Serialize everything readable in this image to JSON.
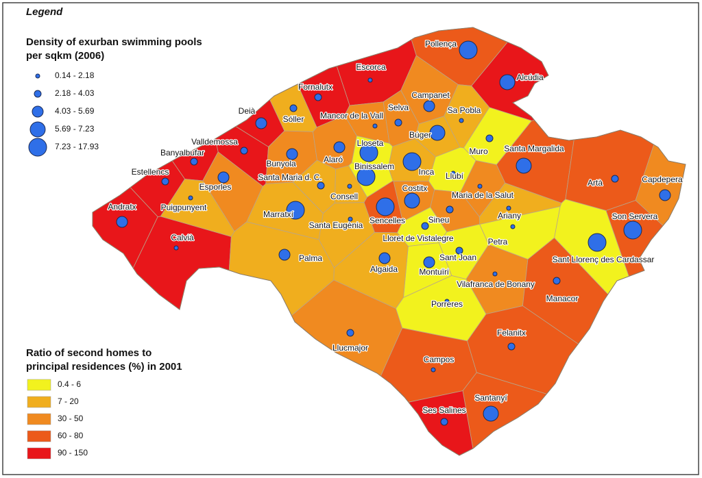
{
  "legend_heading": "Legend",
  "pools_legend": {
    "title": [
      "Density of exurban swimming pools",
      "per sqkm (2006)"
    ],
    "items": [
      "0.14 - 2.18",
      "2.18 - 4.03",
      "4.03 - 5.69",
      "5.69 - 7.23",
      "7.23 - 17.93"
    ],
    "color": "#2f6fe8"
  },
  "ratio_legend": {
    "title": [
      "Ratio of second homes to",
      "principal residences (%) in 2001"
    ],
    "items": [
      {
        "label": "0.4 - 6",
        "color": "#f2f21e"
      },
      {
        "label": "7 - 20",
        "color": "#f0ae1e"
      },
      {
        "label": "30 - 50",
        "color": "#f08a20"
      },
      {
        "label": "60 - 80",
        "color": "#ec5a1a"
      },
      {
        "label": "90 - 150",
        "color": "#e8161a"
      }
    ]
  },
  "municipalities": [
    {
      "name": "Pollença",
      "ratio": "60 - 80",
      "pools": "7.23 - 17.93"
    },
    {
      "name": "Escorca",
      "ratio": "90 - 150",
      "pools": "0.14 - 2.18"
    },
    {
      "name": "Alcúdia",
      "ratio": "90 - 150",
      "pools": "5.69 - 7.23"
    },
    {
      "name": "Fornalutx",
      "ratio": "90 - 150",
      "pools": "2.18 - 4.03"
    },
    {
      "name": "Sóller",
      "ratio": "7 - 20",
      "pools": "2.18 - 4.03"
    },
    {
      "name": "Deià",
      "ratio": "90 - 150",
      "pools": "4.03 - 5.69"
    },
    {
      "name": "Mancor de la Vall",
      "ratio": "30 - 50",
      "pools": "0.14 - 2.18"
    },
    {
      "name": "Campanet",
      "ratio": "30 - 50",
      "pools": "4.03 - 5.69"
    },
    {
      "name": "Selva",
      "ratio": "30 - 50",
      "pools": "2.18 - 4.03"
    },
    {
      "name": "Sa Pobla",
      "ratio": "7 - 20",
      "pools": "0.14 - 2.18"
    },
    {
      "name": "Búger",
      "ratio": "7 - 20",
      "pools": "5.69 - 7.23"
    },
    {
      "name": "Valldemossa",
      "ratio": "90 - 150",
      "pools": "2.18 - 4.03"
    },
    {
      "name": "Banyalbufar",
      "ratio": "90 - 150",
      "pools": "2.18 - 4.03"
    },
    {
      "name": "Lloseta",
      "ratio": "0.4 - 6",
      "pools": "7.23 - 17.93"
    },
    {
      "name": "Muro",
      "ratio": "0.4 - 6",
      "pools": "2.18 - 4.03"
    },
    {
      "name": "Santa Margalida",
      "ratio": "60 - 80",
      "pools": "5.69 - 7.23"
    },
    {
      "name": "Bunyola",
      "ratio": "30 - 50",
      "pools": "4.03 - 5.69"
    },
    {
      "name": "Alaró",
      "ratio": "30 - 50",
      "pools": "4.03 - 5.69"
    },
    {
      "name": "Binissalem",
      "ratio": "0.4 - 6",
      "pools": "7.23 - 17.93"
    },
    {
      "name": "Inca",
      "ratio": "7 - 20",
      "pools": "7.23 - 17.93"
    },
    {
      "name": "Llubí",
      "ratio": "0.4 - 6",
      "pools": "0.14 - 2.18"
    },
    {
      "name": "Estellencs",
      "ratio": "90 - 150",
      "pools": "2.18 - 4.03"
    },
    {
      "name": "Esporles",
      "ratio": "30 - 50",
      "pools": "4.03 - 5.69"
    },
    {
      "name": "Santa Maria d. C.",
      "ratio": "7 - 20",
      "pools": "2.18 - 4.03"
    },
    {
      "name": "Consell",
      "ratio": "7 - 20",
      "pools": "0.14 - 2.18"
    },
    {
      "name": "Costitx",
      "ratio": "30 - 50",
      "pools": "5.69 - 7.23"
    },
    {
      "name": "Maria de la Salut",
      "ratio": "30 - 50",
      "pools": "0.14 - 2.18"
    },
    {
      "name": "Sineu",
      "ratio": "30 - 50",
      "pools": "2.18 - 4.03"
    },
    {
      "name": "Ariany",
      "ratio": "7 - 20",
      "pools": "0.14 - 2.18"
    },
    {
      "name": "Artà",
      "ratio": "60 - 80",
      "pools": "2.18 - 4.03"
    },
    {
      "name": "Capdepera",
      "ratio": "30 - 50",
      "pools": "4.03 - 5.69"
    },
    {
      "name": "Son Servera",
      "ratio": "60 - 80",
      "pools": "7.23 - 17.93"
    },
    {
      "name": "Andratx",
      "ratio": "90 - 150",
      "pools": "4.03 - 5.69"
    },
    {
      "name": "Puigpunyent",
      "ratio": "7 - 20",
      "pools": "0.14 - 2.18"
    },
    {
      "name": "Marratxí",
      "ratio": "7 - 20",
      "pools": "7.23 - 17.93"
    },
    {
      "name": "Santa Eugènia",
      "ratio": "7 - 20",
      "pools": "0.14 - 2.18"
    },
    {
      "name": "Sencelles",
      "ratio": "60 - 80",
      "pools": "7.23 - 17.93"
    },
    {
      "name": "Lloret de Vistalegre",
      "ratio": "0.4 - 6",
      "pools": "2.18 - 4.03"
    },
    {
      "name": "Petra",
      "ratio": "0.4 - 6",
      "pools": "0.14 - 2.18"
    },
    {
      "name": "Sant Llorenç des Cardassar",
      "ratio": "0.4 - 6",
      "pools": "7.23 - 17.93"
    },
    {
      "name": "Calvià",
      "ratio": "90 - 150",
      "pools": "0.14 - 2.18"
    },
    {
      "name": "Palma",
      "ratio": "7 - 20",
      "pools": "4.03 - 5.69"
    },
    {
      "name": "Sant Joan",
      "ratio": "0.4 - 6",
      "pools": "2.18 - 4.03"
    },
    {
      "name": "Montuïri",
      "ratio": "0.4 - 6",
      "pools": "4.03 - 5.69"
    },
    {
      "name": "Algaida",
      "ratio": "7 - 20",
      "pools": "4.03 - 5.69"
    },
    {
      "name": "Vilafranca de Bonany",
      "ratio": "30 - 50",
      "pools": "0.14 - 2.18"
    },
    {
      "name": "Manacor",
      "ratio": "60 - 80",
      "pools": "2.18 - 4.03"
    },
    {
      "name": "Porreres",
      "ratio": "0.4 - 6",
      "pools": "0.14 - 2.18"
    },
    {
      "name": "Llucmajor",
      "ratio": "30 - 50",
      "pools": "2.18 - 4.03"
    },
    {
      "name": "Felanitx",
      "ratio": "60 - 80",
      "pools": "2.18 - 4.03"
    },
    {
      "name": "Campos",
      "ratio": "60 - 80",
      "pools": "0.14 - 2.18"
    },
    {
      "name": "Santanyí",
      "ratio": "60 - 80",
      "pools": "5.69 - 7.23"
    },
    {
      "name": "Ses Salines",
      "ratio": "90 - 150",
      "pools": "2.18 - 4.03"
    }
  ]
}
